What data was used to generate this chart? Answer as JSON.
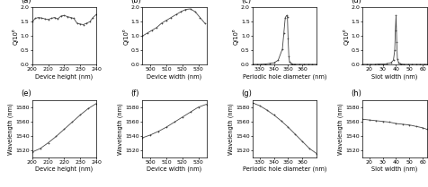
{
  "panel_labels": [
    "(a)",
    "(b)",
    "(c)",
    "(d)",
    "(e)",
    "(f)",
    "(g)",
    "(h)"
  ],
  "a": {
    "xlabel": "Device height (nm)",
    "ylabel": "Q/10⁶",
    "xlim": [
      200,
      240
    ],
    "ylim": [
      0.0,
      2.0
    ],
    "xticks": [
      200,
      210,
      220,
      230,
      240
    ],
    "yticks": [
      0.0,
      0.5,
      1.0,
      1.5,
      2.0
    ],
    "x": [
      200,
      202,
      204,
      206,
      208,
      210,
      212,
      214,
      216,
      218,
      220,
      222,
      224,
      226,
      228,
      230,
      232,
      234,
      236,
      238,
      240
    ],
    "y": [
      1.5,
      1.62,
      1.65,
      1.63,
      1.6,
      1.58,
      1.62,
      1.65,
      1.6,
      1.7,
      1.72,
      1.68,
      1.65,
      1.62,
      1.45,
      1.42,
      1.4,
      1.45,
      1.5,
      1.65,
      1.75
    ]
  },
  "b": {
    "xlabel": "Device width (nm)",
    "ylabel": "Q/10⁶",
    "xlim": [
      495,
      535
    ],
    "ylim": [
      0.0,
      2.0
    ],
    "xticks": [
      500,
      510,
      520,
      530
    ],
    "yticks": [
      0.0,
      0.5,
      1.0,
      1.5,
      2.0
    ],
    "x": [
      495,
      498,
      501,
      504,
      507,
      510,
      513,
      516,
      519,
      522,
      525,
      528,
      531,
      534
    ],
    "y": [
      1.0,
      1.1,
      1.2,
      1.3,
      1.45,
      1.55,
      1.65,
      1.75,
      1.85,
      1.93,
      1.95,
      1.85,
      1.65,
      1.45
    ]
  },
  "c": {
    "xlabel": "Periodic hole diameter (nm)",
    "ylabel": "Q/10⁶",
    "xlim": [
      325,
      370
    ],
    "ylim": [
      0.0,
      2.0
    ],
    "xticks": [
      330,
      340,
      350,
      360
    ],
    "yticks": [
      0.0,
      0.5,
      1.0,
      1.5,
      2.0
    ],
    "x": [
      325,
      328,
      331,
      334,
      337,
      340,
      343,
      346,
      347,
      348,
      349,
      349.5,
      350,
      350.5,
      351,
      352,
      353,
      354,
      355,
      358,
      361,
      364,
      367,
      370
    ],
    "y": [
      0.01,
      0.01,
      0.01,
      0.02,
      0.04,
      0.06,
      0.15,
      0.55,
      1.1,
      1.65,
      1.72,
      1.68,
      0.9,
      0.3,
      0.1,
      0.04,
      0.02,
      0.01,
      0.01,
      0.01,
      0.01,
      0.01,
      0.01,
      0.01
    ]
  },
  "d": {
    "xlabel": "Slot width (nm)",
    "ylabel": "Q/10⁶",
    "xlim": [
      15,
      63
    ],
    "ylim": [
      0.0,
      2.0
    ],
    "xticks": [
      20,
      30,
      40,
      50,
      60
    ],
    "yticks": [
      0.0,
      0.5,
      1.0,
      1.5,
      2.0
    ],
    "x": [
      15,
      18,
      21,
      24,
      27,
      30,
      33,
      36,
      38,
      39,
      39.5,
      40,
      40.5,
      41,
      42,
      43,
      44,
      46,
      49,
      52,
      55,
      58,
      61,
      63
    ],
    "y": [
      0.01,
      0.01,
      0.01,
      0.01,
      0.02,
      0.02,
      0.03,
      0.06,
      0.15,
      0.5,
      1.2,
      1.72,
      0.8,
      0.2,
      0.06,
      0.03,
      0.02,
      0.01,
      0.01,
      0.01,
      0.01,
      0.01,
      0.01,
      0.01
    ]
  },
  "e": {
    "xlabel": "Device height (nm)",
    "ylabel": "Wavelength (nm)",
    "xlim": [
      200,
      240
    ],
    "ylim": [
      1510,
      1590
    ],
    "xticks": [
      200,
      210,
      220,
      230,
      240
    ],
    "yticks": [
      1520,
      1540,
      1560,
      1580
    ],
    "x": [
      200,
      205,
      210,
      215,
      220,
      225,
      230,
      235,
      240
    ],
    "y": [
      1517,
      1522,
      1530,
      1539,
      1549,
      1559,
      1569,
      1578,
      1585
    ]
  },
  "f": {
    "xlabel": "Device width (nm)",
    "ylabel": "Wavelength (nm)",
    "xlim": [
      495,
      535
    ],
    "ylim": [
      1510,
      1590
    ],
    "xticks": [
      500,
      510,
      520,
      530
    ],
    "yticks": [
      1520,
      1540,
      1560,
      1580
    ],
    "x": [
      495,
      500,
      505,
      510,
      515,
      520,
      525,
      530,
      535
    ],
    "y": [
      1537,
      1541,
      1546,
      1552,
      1559,
      1566,
      1573,
      1580,
      1584
    ]
  },
  "g": {
    "xlabel": "Periodic hole diameter (nm)",
    "ylabel": "Wavelength (nm)",
    "xlim": [
      325,
      370
    ],
    "ylim": [
      1510,
      1590
    ],
    "xticks": [
      330,
      340,
      350,
      360
    ],
    "yticks": [
      1520,
      1540,
      1560,
      1580
    ],
    "x": [
      325,
      330,
      335,
      340,
      345,
      350,
      355,
      360,
      365,
      370
    ],
    "y": [
      1586,
      1582,
      1576,
      1569,
      1561,
      1552,
      1542,
      1532,
      1522,
      1515
    ]
  },
  "h": {
    "xlabel": "Slot width (nm)",
    "ylabel": "Wavelength (nm)",
    "xlim": [
      15,
      63
    ],
    "ylim": [
      1510,
      1590
    ],
    "xticks": [
      20,
      30,
      40,
      50,
      60
    ],
    "yticks": [
      1520,
      1540,
      1560,
      1580
    ],
    "x": [
      15,
      20,
      25,
      30,
      35,
      40,
      45,
      50,
      55,
      60,
      63
    ],
    "y": [
      1563,
      1562,
      1561,
      1560,
      1559,
      1557,
      1556,
      1555,
      1553,
      1551,
      1549
    ]
  },
  "line_color": "#444444",
  "marker_style": "+",
  "marker_size": 2.0,
  "linewidth": 0.6,
  "tick_fontsize": 4.5,
  "label_fontsize": 4.8,
  "panel_label_fontsize": 6.0
}
